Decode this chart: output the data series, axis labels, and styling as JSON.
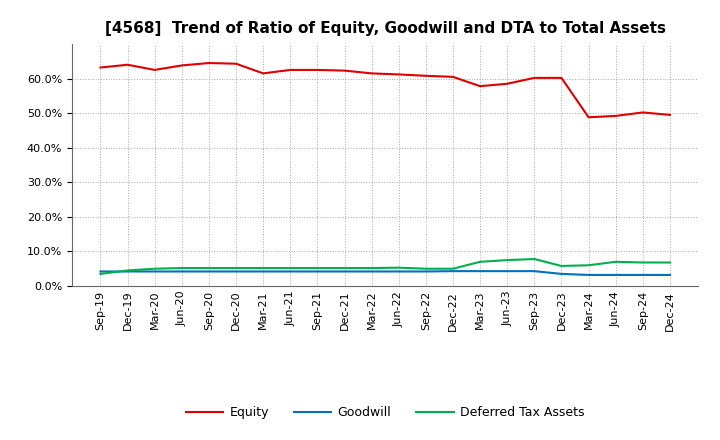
{
  "title": "[4568]  Trend of Ratio of Equity, Goodwill and DTA to Total Assets",
  "x_labels": [
    "Sep-19",
    "Dec-19",
    "Mar-20",
    "Jun-20",
    "Sep-20",
    "Dec-20",
    "Mar-21",
    "Jun-21",
    "Sep-21",
    "Dec-21",
    "Mar-22",
    "Jun-22",
    "Sep-22",
    "Dec-22",
    "Mar-23",
    "Jun-23",
    "Sep-23",
    "Dec-23",
    "Mar-24",
    "Jun-24",
    "Sep-24",
    "Dec-24"
  ],
  "equity": [
    63.2,
    64.0,
    62.5,
    63.8,
    64.5,
    64.3,
    61.5,
    62.5,
    62.5,
    62.3,
    61.5,
    61.2,
    60.8,
    60.5,
    57.8,
    58.5,
    60.2,
    60.2,
    48.8,
    49.2,
    50.2,
    49.5
  ],
  "goodwill": [
    4.2,
    4.2,
    4.2,
    4.2,
    4.2,
    4.2,
    4.2,
    4.2,
    4.2,
    4.2,
    4.2,
    4.2,
    4.2,
    4.3,
    4.3,
    4.3,
    4.3,
    3.5,
    3.2,
    3.2,
    3.2,
    3.2
  ],
  "dta": [
    3.5,
    4.5,
    5.0,
    5.2,
    5.2,
    5.2,
    5.2,
    5.2,
    5.2,
    5.2,
    5.2,
    5.3,
    5.0,
    5.0,
    7.0,
    7.5,
    7.8,
    5.8,
    6.0,
    7.0,
    6.8,
    6.8
  ],
  "equity_color": "#e00000",
  "goodwill_color": "#0070c0",
  "dta_color": "#00b050",
  "background_color": "#ffffff",
  "grid_color": "#aaaaaa",
  "ylim": [
    0,
    70
  ],
  "yticks": [
    0,
    10,
    20,
    30,
    40,
    50,
    60
  ],
  "legend_labels": [
    "Equity",
    "Goodwill",
    "Deferred Tax Assets"
  ],
  "title_fontsize": 11,
  "tick_fontsize": 8,
  "legend_fontsize": 9
}
